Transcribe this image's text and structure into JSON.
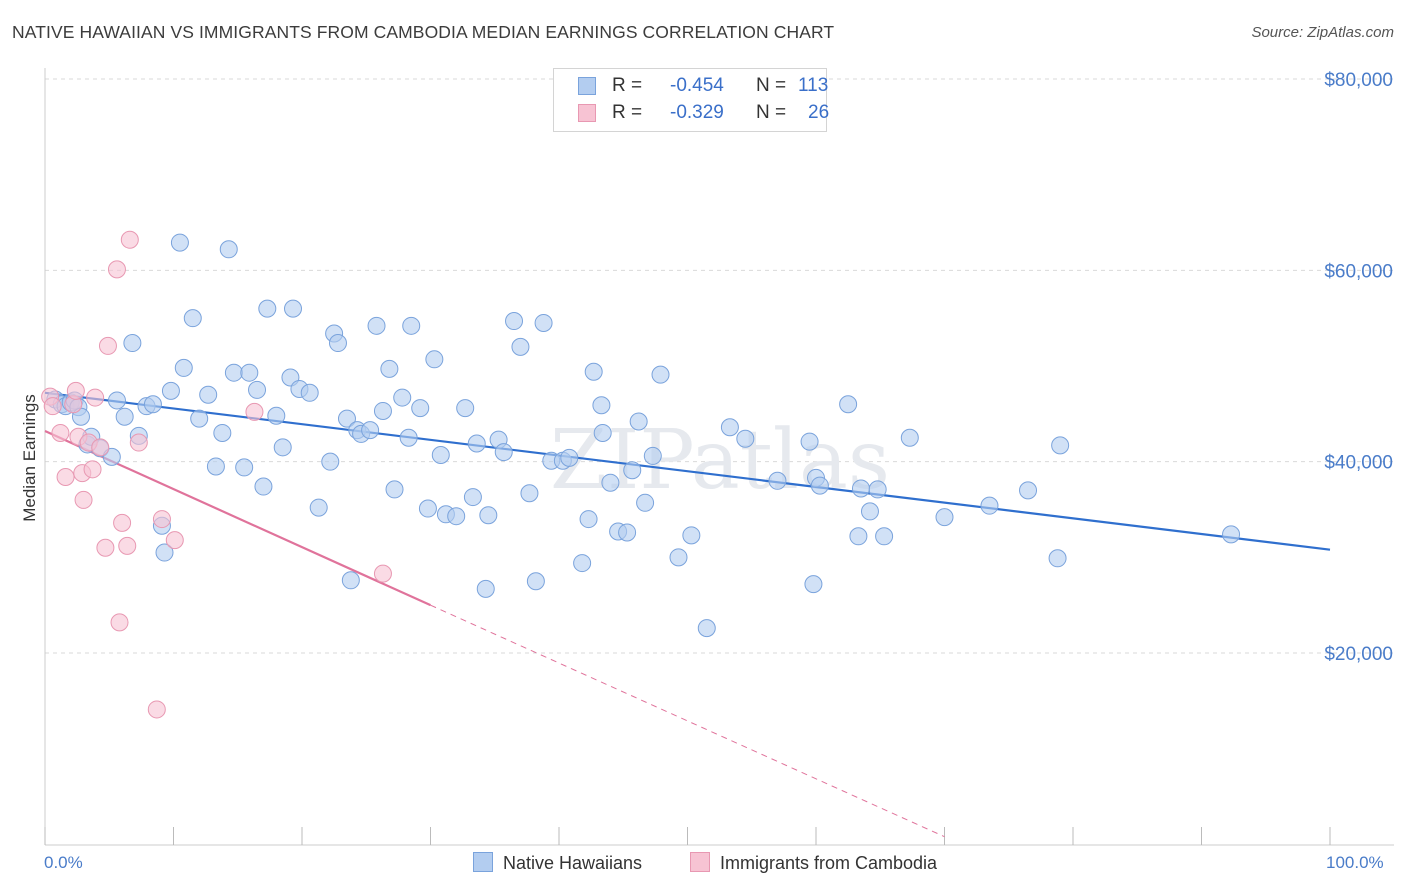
{
  "title": "NATIVE HAWAIIAN VS IMMIGRANTS FROM CAMBODIA MEDIAN EARNINGS CORRELATION CHART",
  "source": "Source: ZipAtlas.com",
  "watermark": "ZIPatlas",
  "legend": {
    "rows": [
      {
        "r_label": "R =",
        "r_value": "-0.454",
        "n_label": "N =",
        "n_value": "113"
      },
      {
        "r_label": "R =",
        "r_value": "-0.329",
        "n_label": "N =",
        "n_value": "26"
      }
    ]
  },
  "bottom_legend": {
    "series1": "Native Hawaiians",
    "series2": "Immigrants from Cambodia"
  },
  "axis": {
    "x_min_label": "0.0%",
    "x_max_label": "100.0%",
    "y_label": "Median Earnings"
  },
  "colors": {
    "blue_fill": "#b3cdf0",
    "blue_stroke": "#7aa3dc",
    "blue_line": "#2f6fce",
    "pink_fill": "#f7c3d3",
    "pink_stroke": "#e898b2",
    "pink_line": "#e0739b",
    "tick_label": "#4a7cc9",
    "grid": "#d9d9d9"
  },
  "chart_data": {
    "type": "scatter",
    "title": "NATIVE HAWAIIAN VS IMMIGRANTS FROM CAMBODIA MEDIAN EARNINGS CORRELATION CHART",
    "xlabel": "",
    "ylabel": "Median Earnings",
    "xlim": [
      0,
      100
    ],
    "ylim": [
      0,
      82000
    ],
    "y_ticks": [
      20000,
      40000,
      60000,
      80000
    ],
    "y_tick_labels": [
      "$20,000",
      "$40,000",
      "$60,000",
      "$80,000"
    ],
    "x_tick_labels": [
      "0.0%",
      "100.0%"
    ],
    "grid": "horizontal dashed",
    "legend_position": "top-center",
    "series": [
      {
        "name": "Native Hawaiians",
        "color": "#b3cdf0",
        "trend": {
          "x": [
            0,
            100
          ],
          "y": [
            47200,
            30800
          ]
        },
        "points": [
          [
            0.8,
            46500
          ],
          [
            1.3,
            46000
          ],
          [
            1.6,
            45800
          ],
          [
            2.0,
            46200
          ],
          [
            2.3,
            46400
          ],
          [
            2.6,
            45700
          ],
          [
            2.8,
            44700
          ],
          [
            3.3,
            41800
          ],
          [
            3.6,
            42600
          ],
          [
            4.3,
            41400
          ],
          [
            5.2,
            40500
          ],
          [
            5.6,
            46400
          ],
          [
            6.2,
            44700
          ],
          [
            6.8,
            52400
          ],
          [
            7.3,
            42700
          ],
          [
            7.9,
            45800
          ],
          [
            8.4,
            46000
          ],
          [
            9.1,
            33300
          ],
          [
            9.3,
            30500
          ],
          [
            9.8,
            47400
          ],
          [
            10.5,
            62900
          ],
          [
            10.8,
            49800
          ],
          [
            11.5,
            55000
          ],
          [
            12.0,
            44500
          ],
          [
            12.7,
            47000
          ],
          [
            13.3,
            39500
          ],
          [
            13.8,
            43000
          ],
          [
            14.3,
            62200
          ],
          [
            14.7,
            49300
          ],
          [
            15.5,
            39400
          ],
          [
            15.9,
            49300
          ],
          [
            16.5,
            47500
          ],
          [
            17.0,
            37400
          ],
          [
            17.3,
            56000
          ],
          [
            18.0,
            44800
          ],
          [
            18.5,
            41500
          ],
          [
            19.1,
            48800
          ],
          [
            19.3,
            56000
          ],
          [
            19.8,
            47600
          ],
          [
            20.6,
            47200
          ],
          [
            21.3,
            35200
          ],
          [
            22.2,
            40000
          ],
          [
            22.5,
            53400
          ],
          [
            22.8,
            52400
          ],
          [
            23.5,
            44500
          ],
          [
            23.8,
            27600
          ],
          [
            24.3,
            43300
          ],
          [
            24.6,
            42900
          ],
          [
            25.3,
            43300
          ],
          [
            25.8,
            54200
          ],
          [
            26.3,
            45300
          ],
          [
            26.8,
            49700
          ],
          [
            27.2,
            37100
          ],
          [
            27.8,
            46700
          ],
          [
            28.3,
            42500
          ],
          [
            28.5,
            54200
          ],
          [
            29.2,
            45600
          ],
          [
            29.8,
            35100
          ],
          [
            30.3,
            50700
          ],
          [
            30.8,
            40700
          ],
          [
            31.2,
            34500
          ],
          [
            32.0,
            34300
          ],
          [
            32.7,
            45600
          ],
          [
            33.3,
            36300
          ],
          [
            33.6,
            41900
          ],
          [
            34.5,
            34400
          ],
          [
            35.3,
            42300
          ],
          [
            35.7,
            41000
          ],
          [
            34.3,
            26700
          ],
          [
            36.5,
            54700
          ],
          [
            37.0,
            52000
          ],
          [
            37.7,
            36700
          ],
          [
            38.2,
            27500
          ],
          [
            38.8,
            54500
          ],
          [
            39.4,
            40100
          ],
          [
            40.3,
            40100
          ],
          [
            40.8,
            40400
          ],
          [
            41.8,
            29400
          ],
          [
            42.3,
            34000
          ],
          [
            42.7,
            49400
          ],
          [
            43.3,
            45900
          ],
          [
            43.4,
            43000
          ],
          [
            44.0,
            37800
          ],
          [
            44.6,
            32700
          ],
          [
            45.3,
            32600
          ],
          [
            45.7,
            39100
          ],
          [
            46.2,
            44200
          ],
          [
            46.7,
            35700
          ],
          [
            47.3,
            40600
          ],
          [
            47.9,
            49100
          ],
          [
            49.3,
            30000
          ],
          [
            50.3,
            32300
          ],
          [
            51.5,
            22600
          ],
          [
            53.3,
            43600
          ],
          [
            54.5,
            42400
          ],
          [
            57.0,
            38000
          ],
          [
            59.5,
            42100
          ],
          [
            59.8,
            27200
          ],
          [
            60.0,
            38300
          ],
          [
            60.3,
            37500
          ],
          [
            62.5,
            46000
          ],
          [
            63.3,
            32200
          ],
          [
            63.5,
            37200
          ],
          [
            64.2,
            34800
          ],
          [
            64.8,
            37100
          ],
          [
            65.3,
            32200
          ],
          [
            67.3,
            42500
          ],
          [
            70.0,
            34200
          ],
          [
            73.5,
            35400
          ],
          [
            76.5,
            37000
          ],
          [
            78.8,
            29900
          ],
          [
            79.0,
            41700
          ],
          [
            92.3,
            32400
          ]
        ]
      },
      {
        "name": "Immigrants from Cambodia",
        "color": "#f7c3d3",
        "trend": {
          "x": [
            0,
            30
          ],
          "y": [
            43200,
            25000
          ]
        },
        "trend_dashed": {
          "x": [
            30,
            70
          ],
          "y": [
            25000,
            800
          ]
        },
        "points": [
          [
            0.4,
            46800
          ],
          [
            0.6,
            45800
          ],
          [
            1.2,
            43000
          ],
          [
            1.6,
            38400
          ],
          [
            2.2,
            46000
          ],
          [
            2.4,
            47400
          ],
          [
            2.6,
            42600
          ],
          [
            2.9,
            38800
          ],
          [
            3.0,
            36000
          ],
          [
            3.4,
            42000
          ],
          [
            3.7,
            39200
          ],
          [
            3.9,
            46700
          ],
          [
            4.3,
            41500
          ],
          [
            4.7,
            31000
          ],
          [
            4.9,
            52100
          ],
          [
            5.6,
            60100
          ],
          [
            5.8,
            23200
          ],
          [
            6.0,
            33600
          ],
          [
            6.4,
            31200
          ],
          [
            6.6,
            63200
          ],
          [
            7.3,
            42000
          ],
          [
            8.7,
            14100
          ],
          [
            9.1,
            34000
          ],
          [
            10.1,
            31800
          ],
          [
            16.3,
            45200
          ],
          [
            26.3,
            28300
          ]
        ]
      }
    ]
  }
}
